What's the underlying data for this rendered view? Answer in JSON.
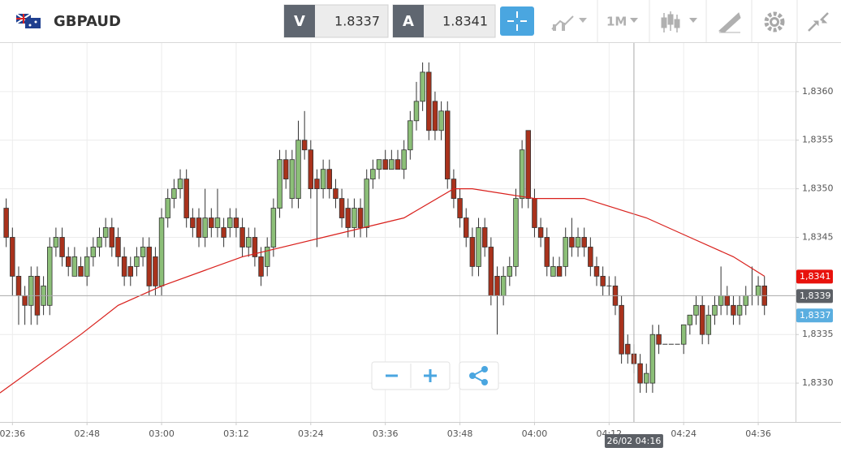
{
  "header": {
    "symbol": "GBPAUD",
    "sell_label": "V",
    "sell_price": "1.8337",
    "buy_label": "A",
    "buy_price": "1.8341",
    "timeframe": "1M"
  },
  "chart_data": {
    "type": "candlestick",
    "ohlc": [
      [
        1.8348,
        1.8349,
        1.8344,
        1.8345
      ],
      [
        1.8345,
        1.8346,
        1.8339,
        1.8341
      ],
      [
        1.8341,
        1.8342,
        1.8336,
        1.8339
      ],
      [
        1.8339,
        1.834,
        1.8336,
        1.8338
      ],
      [
        1.8338,
        1.8342,
        1.8336,
        1.8341
      ],
      [
        1.8341,
        1.8342,
        1.8336,
        1.8337
      ],
      [
        1.8338,
        1.8341,
        1.8337,
        1.834
      ],
      [
        1.8338,
        1.8345,
        1.8337,
        1.8344
      ],
      [
        1.8344,
        1.8346,
        1.8343,
        1.8345
      ],
      [
        1.8345,
        1.8346,
        1.8342,
        1.8343
      ],
      [
        1.8343,
        1.8344,
        1.8341,
        1.8342
      ],
      [
        1.8341,
        1.8344,
        1.8341,
        1.8343
      ],
      [
        1.8342,
        1.8343,
        1.8341,
        1.8341
      ],
      [
        1.8341,
        1.8344,
        1.834,
        1.8343
      ],
      [
        1.8343,
        1.8345,
        1.8342,
        1.8344
      ],
      [
        1.8344,
        1.8346,
        1.8343,
        1.8345
      ],
      [
        1.8345,
        1.8347,
        1.8344,
        1.8346
      ],
      [
        1.8346,
        1.8347,
        1.8343,
        1.8344
      ],
      [
        1.8345,
        1.8346,
        1.8342,
        1.8343
      ],
      [
        1.8343,
        1.8344,
        1.834,
        1.8341
      ],
      [
        1.8342,
        1.8343,
        1.834,
        1.8341
      ],
      [
        1.8342,
        1.8344,
        1.8341,
        1.8343
      ],
      [
        1.8343,
        1.8345,
        1.8342,
        1.8344
      ],
      [
        1.8344,
        1.8345,
        1.8339,
        1.834
      ],
      [
        1.8343,
        1.8344,
        1.8339,
        1.834
      ],
      [
        1.834,
        1.8348,
        1.8339,
        1.8347
      ],
      [
        1.8347,
        1.835,
        1.8346,
        1.8349
      ],
      [
        1.8349,
        1.8351,
        1.8348,
        1.835
      ],
      [
        1.835,
        1.8352,
        1.8349,
        1.8351
      ],
      [
        1.8351,
        1.8352,
        1.8346,
        1.8347
      ],
      [
        1.8347,
        1.8348,
        1.8345,
        1.8346
      ],
      [
        1.8347,
        1.8348,
        1.8344,
        1.8345
      ],
      [
        1.8345,
        1.835,
        1.8344,
        1.8347
      ],
      [
        1.8347,
        1.8348,
        1.8345,
        1.8346
      ],
      [
        1.8346,
        1.835,
        1.8345,
        1.8347
      ],
      [
        1.8346,
        1.8347,
        1.8344,
        1.8345
      ],
      [
        1.8346,
        1.8348,
        1.8345,
        1.8347
      ],
      [
        1.8347,
        1.8348,
        1.8345,
        1.8346
      ],
      [
        1.8346,
        1.8347,
        1.8343,
        1.8344
      ],
      [
        1.8344,
        1.8346,
        1.8343,
        1.8345
      ],
      [
        1.8345,
        1.8346,
        1.8342,
        1.8343
      ],
      [
        1.8343,
        1.8344,
        1.834,
        1.8341
      ],
      [
        1.8342,
        1.8345,
        1.8341,
        1.8344
      ],
      [
        1.8344,
        1.8349,
        1.8343,
        1.8348
      ],
      [
        1.8348,
        1.8354,
        1.8347,
        1.8353
      ],
      [
        1.8353,
        1.8354,
        1.835,
        1.8351
      ],
      [
        1.8349,
        1.8354,
        1.8348,
        1.8353
      ],
      [
        1.8349,
        1.8357,
        1.8348,
        1.8355
      ],
      [
        1.8355,
        1.8358,
        1.8353,
        1.8354
      ],
      [
        1.8354,
        1.8355,
        1.8349,
        1.835
      ],
      [
        1.8351,
        1.8352,
        1.8344,
        1.835
      ],
      [
        1.835,
        1.8353,
        1.8349,
        1.8352
      ],
      [
        1.8352,
        1.8353,
        1.8349,
        1.835
      ],
      [
        1.835,
        1.8351,
        1.8348,
        1.8349
      ],
      [
        1.8349,
        1.835,
        1.8346,
        1.8347
      ],
      [
        1.8348,
        1.8349,
        1.8345,
        1.8346
      ],
      [
        1.8346,
        1.8349,
        1.8345,
        1.8348
      ],
      [
        1.8348,
        1.8349,
        1.8345,
        1.8346
      ],
      [
        1.8346,
        1.8352,
        1.8345,
        1.8351
      ],
      [
        1.8351,
        1.8353,
        1.835,
        1.8352
      ],
      [
        1.8352,
        1.8353,
        1.8351,
        1.8353
      ],
      [
        1.8353,
        1.8354,
        1.8352,
        1.8352
      ],
      [
        1.8352,
        1.8354,
        1.8352,
        1.8353
      ],
      [
        1.8353,
        1.8354,
        1.8352,
        1.8352
      ],
      [
        1.8352,
        1.8355,
        1.8351,
        1.8354
      ],
      [
        1.8354,
        1.8358,
        1.8353,
        1.8357
      ],
      [
        1.8357,
        1.8361,
        1.8356,
        1.8359
      ],
      [
        1.8359,
        1.8363,
        1.8358,
        1.8362
      ],
      [
        1.8362,
        1.8363,
        1.8355,
        1.8356
      ],
      [
        1.8359,
        1.836,
        1.8355,
        1.8356
      ],
      [
        1.8356,
        1.8359,
        1.8355,
        1.8358
      ],
      [
        1.8358,
        1.8359,
        1.835,
        1.8351
      ],
      [
        1.8351,
        1.8352,
        1.8348,
        1.8349
      ],
      [
        1.8349,
        1.835,
        1.8346,
        1.8347
      ],
      [
        1.8347,
        1.8348,
        1.8344,
        1.8345
      ],
      [
        1.8345,
        1.8346,
        1.8341,
        1.8342
      ],
      [
        1.8342,
        1.8347,
        1.8341,
        1.8346
      ],
      [
        1.8346,
        1.8347,
        1.8343,
        1.8344
      ],
      [
        1.8344,
        1.8345,
        1.8338,
        1.8339
      ],
      [
        1.8341,
        1.8342,
        1.8335,
        1.8339
      ],
      [
        1.8339,
        1.8342,
        1.8338,
        1.8341
      ],
      [
        1.8341,
        1.8343,
        1.834,
        1.8342
      ],
      [
        1.8342,
        1.835,
        1.8341,
        1.8349
      ],
      [
        1.8349,
        1.8355,
        1.8348,
        1.8354
      ],
      [
        1.8356,
        1.8356,
        1.8348,
        1.8349
      ],
      [
        1.8349,
        1.835,
        1.8345,
        1.8346
      ],
      [
        1.8346,
        1.8347,
        1.8344,
        1.8345
      ],
      [
        1.8345,
        1.8346,
        1.8341,
        1.8342
      ],
      [
        1.8341,
        1.8343,
        1.8341,
        1.8342
      ],
      [
        1.8342,
        1.8343,
        1.8341,
        1.8341
      ],
      [
        1.8342,
        1.8346,
        1.8341,
        1.8345
      ],
      [
        1.8345,
        1.8347,
        1.8343,
        1.8344
      ],
      [
        1.8344,
        1.8346,
        1.8343,
        1.8345
      ],
      [
        1.8345,
        1.8346,
        1.8343,
        1.8344
      ],
      [
        1.8344,
        1.8345,
        1.8341,
        1.8342
      ],
      [
        1.8342,
        1.8343,
        1.834,
        1.8341
      ],
      [
        1.8341,
        1.8342,
        1.8339,
        1.834
      ],
      [
        1.834,
        1.8341,
        1.8339,
        1.834
      ],
      [
        1.834,
        1.8341,
        1.8337,
        1.8338
      ],
      [
        1.8338,
        1.8339,
        1.8332,
        1.8333
      ],
      [
        1.8334,
        1.8335,
        1.8332,
        1.8333
      ],
      [
        1.8333,
        1.8334,
        1.8331,
        1.8332
      ],
      [
        1.8332,
        1.8333,
        1.8329,
        1.833
      ],
      [
        1.833,
        1.8332,
        1.8329,
        1.8331
      ],
      [
        1.833,
        1.8336,
        1.8329,
        1.8335
      ],
      [
        1.8335,
        1.8336,
        1.8333,
        1.8334
      ],
      [
        1.8334,
        1.8334,
        1.8334,
        1.8334
      ],
      [
        1.8334,
        1.8334,
        1.8334,
        1.8334
      ],
      [
        1.8334,
        1.8334,
        1.8334,
        1.8334
      ],
      [
        1.8334,
        1.8336,
        1.8333,
        1.8336
      ],
      [
        1.8336,
        1.8337,
        1.8335,
        1.8337
      ],
      [
        1.8337,
        1.8339,
        1.8336,
        1.8338
      ],
      [
        1.8338,
        1.8339,
        1.8334,
        1.8335
      ],
      [
        1.8335,
        1.8338,
        1.8334,
        1.8337
      ],
      [
        1.8337,
        1.8339,
        1.8336,
        1.8338
      ],
      [
        1.8338,
        1.8342,
        1.8337,
        1.8339
      ],
      [
        1.8339,
        1.834,
        1.8337,
        1.8338
      ],
      [
        1.8338,
        1.8339,
        1.8336,
        1.8337
      ],
      [
        1.8337,
        1.8339,
        1.8336,
        1.8338
      ],
      [
        1.8338,
        1.834,
        1.8337,
        1.8339
      ],
      [
        1.8339,
        1.8342,
        1.8338,
        1.8339
      ],
      [
        1.8339,
        1.8341,
        1.8338,
        1.834
      ],
      [
        1.834,
        1.8341,
        1.8337,
        1.8338
      ]
    ],
    "up_color": "#8cbf78",
    "down_color": "#a9321c",
    "ma": {
      "x": [
        -1,
        12,
        18,
        25,
        38,
        51,
        64,
        72,
        75,
        85,
        93,
        98,
        103,
        110,
        117,
        122
      ],
      "values": [
        1.8329,
        1.8335,
        1.8338,
        1.834,
        1.8343,
        1.8345,
        1.8347,
        1.835,
        1.835,
        1.8349,
        1.8349,
        1.8348,
        1.8347,
        1.8345,
        1.8343,
        1.8341
      ],
      "color": "#d9201c"
    },
    "xlim": [
      -1,
      127
    ],
    "ylim": [
      1.8326,
      1.8365
    ],
    "xticks": [
      {
        "value": 1,
        "label": "02:36"
      },
      {
        "value": 13,
        "label": "02:48"
      },
      {
        "value": 25,
        "label": "03:00"
      },
      {
        "value": 37,
        "label": "03:12"
      },
      {
        "value": 49,
        "label": "03:24"
      },
      {
        "value": 61,
        "label": "03:36"
      },
      {
        "value": 73,
        "label": "03:48"
      },
      {
        "value": 85,
        "label": "04:00"
      },
      {
        "value": 97,
        "label": "04:12"
      },
      {
        "value": 109,
        "label": "04:24"
      },
      {
        "value": 121,
        "label": "04:36"
      }
    ],
    "yticks": [
      {
        "value": 1.833,
        "label": "1,8330"
      },
      {
        "value": 1.8335,
        "label": "1,8335"
      },
      {
        "value": 1.8345,
        "label": "1,8345"
      },
      {
        "value": 1.835,
        "label": "1,8350"
      },
      {
        "value": 1.8355,
        "label": "1,8355"
      },
      {
        "value": 1.836,
        "label": "1,8360"
      }
    ],
    "grid": true,
    "price_tags": [
      {
        "value": 1.8341,
        "label": "1,8341",
        "color": "#e8120c"
      },
      {
        "value": 1.8339,
        "label": "1,8339",
        "color": "#5c6066"
      },
      {
        "value": 1.8337,
        "label": "1,8337",
        "color": "#5aaee0"
      }
    ],
    "crosshair": {
      "x": 101,
      "y": 1.8339,
      "label": "26/02 04:16"
    }
  }
}
